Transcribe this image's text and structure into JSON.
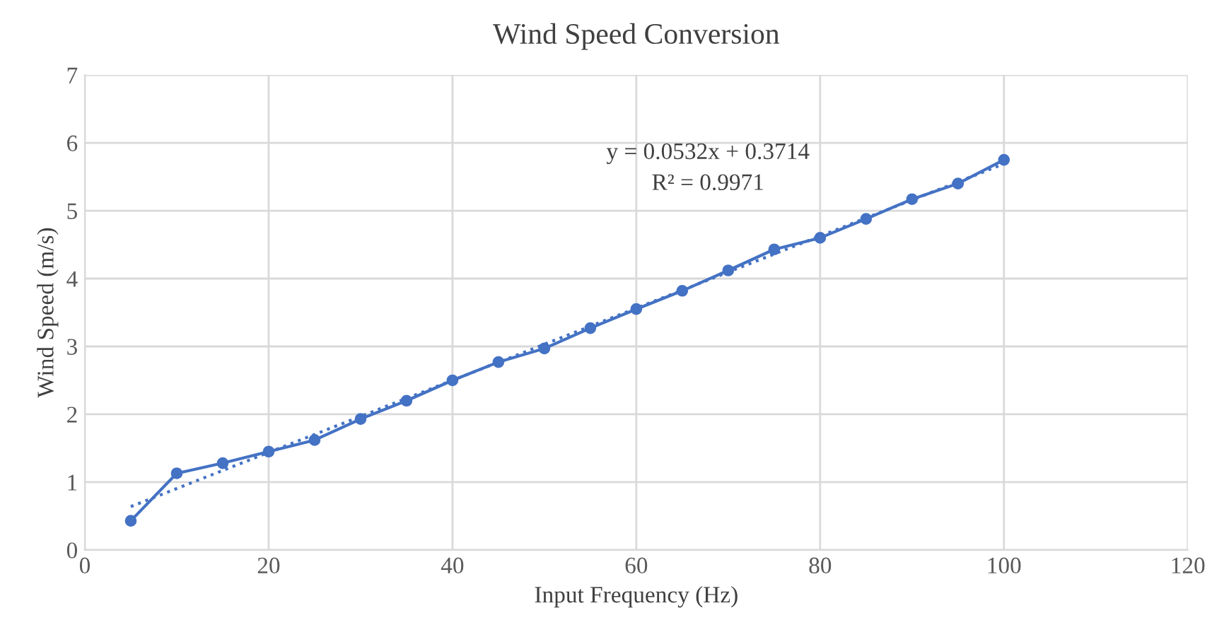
{
  "chart_data": {
    "type": "line",
    "title": "Wind Speed Conversion",
    "xlabel": "Input Frequency (Hz)",
    "ylabel": "Wind Speed (m/s)",
    "xlim": [
      0,
      120
    ],
    "xticks": [
      0,
      20,
      40,
      60,
      80,
      100,
      120
    ],
    "ylim": [
      0,
      7
    ],
    "yticks": [
      0,
      1,
      2,
      3,
      4,
      5,
      6,
      7
    ],
    "grid": true,
    "legend": false,
    "series": [
      {
        "color": "#4472c4",
        "marker": "circle",
        "line_style": "solid",
        "x": [
          5,
          10,
          15,
          20,
          25,
          30,
          35,
          40,
          45,
          50,
          55,
          60,
          65,
          70,
          75,
          80,
          85,
          90,
          95,
          100
        ],
        "values": [
          0.43,
          1.13,
          1.28,
          1.45,
          1.62,
          1.93,
          2.2,
          2.5,
          2.77,
          2.97,
          3.27,
          3.55,
          3.82,
          4.12,
          4.43,
          4.6,
          4.88,
          5.17,
          5.4,
          5.75
        ]
      },
      {
        "color": "#4472c4",
        "marker": "none",
        "line_style": "dotted",
        "x": [
          5,
          100
        ],
        "values": [
          0.64,
          5.69
        ]
      }
    ],
    "annotations": [
      "y = 0.0532x + 0.3714",
      "R² = 0.9971"
    ]
  }
}
